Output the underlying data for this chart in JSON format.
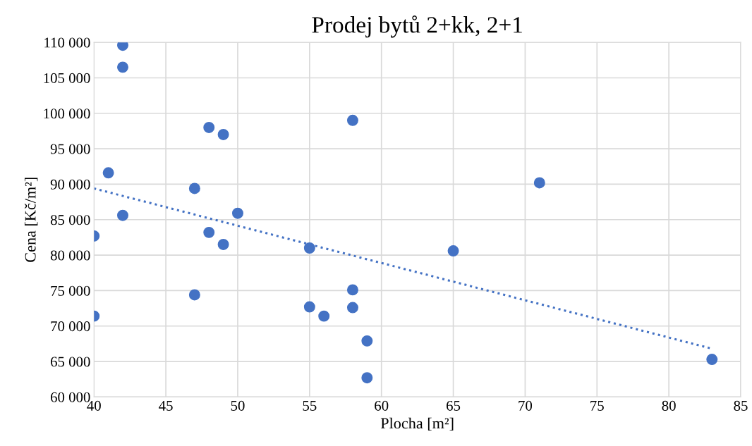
{
  "chart_data": {
    "type": "scatter",
    "title": "Prodej bytů 2+kk, 2+1",
    "xlabel": "Plocha [m²]",
    "ylabel": "Cena [Kč/m²]",
    "xlim": [
      40,
      85
    ],
    "xticks": [
      40,
      45,
      50,
      55,
      60,
      65,
      70,
      75,
      80,
      85
    ],
    "ylim": [
      60000,
      110000
    ],
    "yticks": [
      {
        "value": 60000,
        "label": "60 000"
      },
      {
        "value": 65000,
        "label": "65 000"
      },
      {
        "value": 70000,
        "label": "70 000"
      },
      {
        "value": 75000,
        "label": "75 000"
      },
      {
        "value": 80000,
        "label": "80 000"
      },
      {
        "value": 85000,
        "label": "85 000"
      },
      {
        "value": 90000,
        "label": "90 000"
      },
      {
        "value": 95000,
        "label": "95 000"
      },
      {
        "value": 100000,
        "label": "100 000"
      },
      {
        "value": 105000,
        "label": "105 000"
      },
      {
        "value": 110000,
        "label": "110 000"
      }
    ],
    "grid": true,
    "legend": false,
    "series": [
      {
        "color": "#4472c4",
        "marker": "circle",
        "x": [
          42,
          42,
          48,
          49,
          58,
          41,
          47,
          71,
          42,
          50,
          40,
          48,
          49,
          55,
          65,
          58,
          47,
          55,
          58,
          40,
          56,
          59,
          59,
          83
        ],
        "values": [
          109600,
          106500,
          98000,
          97000,
          99000,
          91600,
          89400,
          90200,
          85600,
          85900,
          82700,
          83200,
          81500,
          81000,
          80600,
          75100,
          74400,
          72700,
          72600,
          71400,
          71400,
          67900,
          62700,
          65300
        ]
      },
      {
        "type": "line",
        "color": "#4472c4",
        "line_style": "dotted",
        "marker": "none",
        "x": [
          40,
          83
        ],
        "values": [
          89400,
          66800
        ]
      }
    ]
  }
}
